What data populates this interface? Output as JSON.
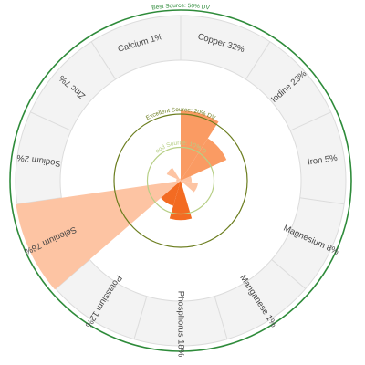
{
  "chart_data": {
    "type": "radial-bar",
    "unit": "% DV",
    "categories": [
      {
        "name": "Calcium",
        "value": 1
      },
      {
        "name": "Copper",
        "value": 32
      },
      {
        "name": "Iodine",
        "value": 23
      },
      {
        "name": "Iron",
        "value": 5
      },
      {
        "name": "Magnesium",
        "value": 8
      },
      {
        "name": "Manganese",
        "value": 1
      },
      {
        "name": "Phosphorus",
        "value": 18
      },
      {
        "name": "Potassium",
        "value": 12
      },
      {
        "name": "Selenium",
        "value": 76
      },
      {
        "name": "Sodium",
        "value": 2
      },
      {
        "name": "Zinc",
        "value": 7
      }
    ],
    "labels": [
      "Calcium 1%",
      "Copper 32%",
      "Iodine 23%",
      "Iron 5%",
      "Magnesium 8%",
      "Manganese 1%",
      "Phosphorus 18%",
      "Potassium 12%",
      "Selenium 76%",
      "Sodium 2%",
      "Zinc 7%"
    ],
    "reference_rings": [
      {
        "label": "Good Source: 10% DV",
        "value": 10,
        "color": "#b7cf86"
      },
      {
        "label": "Excellent Source: 20% DV",
        "value": 20,
        "color": "#6b7d1e"
      },
      {
        "label": "Best Source: 50% DV",
        "value": 50,
        "color": "#2e8b3a"
      }
    ],
    "colors": {
      "light": "#fdc4a3",
      "medium": "#fa9b63",
      "dark": "#f36b22"
    }
  }
}
